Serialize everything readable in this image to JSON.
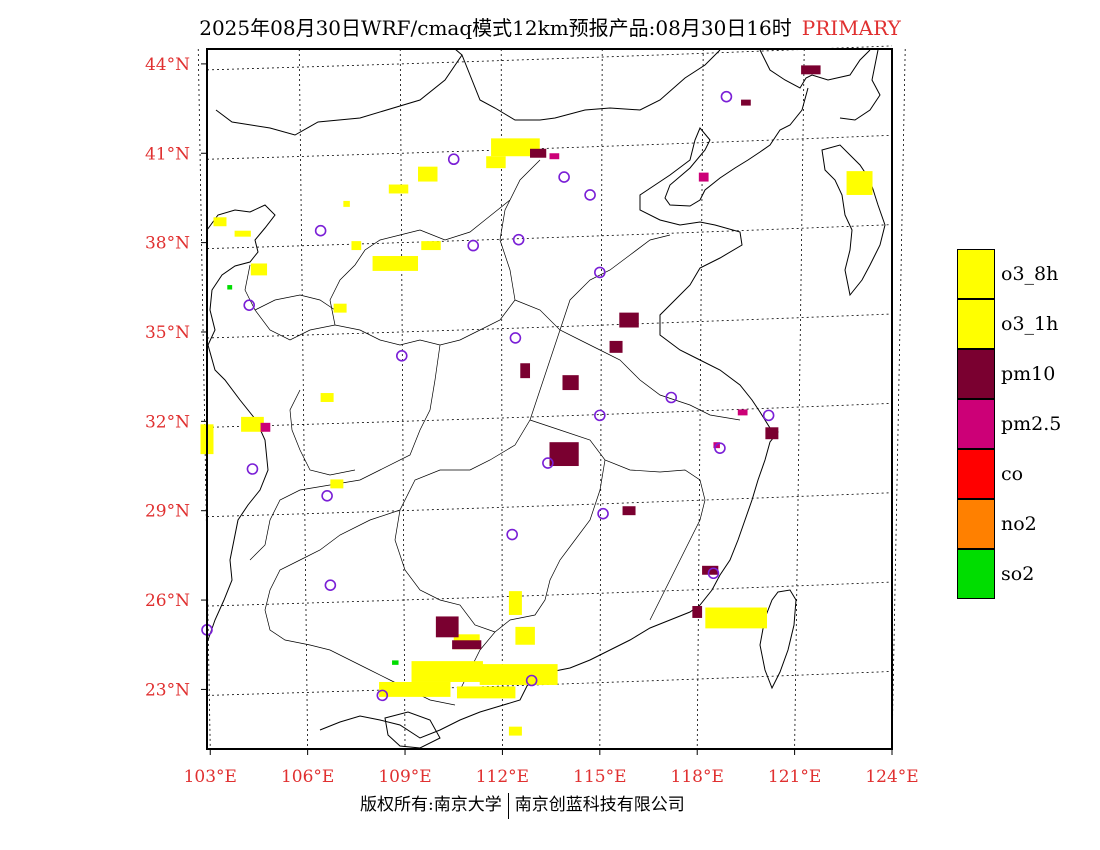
{
  "title": {
    "main": "2025年08月30日WRF/cmaq模式12km预报产品:08月30日16时",
    "tag": "PRIMARY"
  },
  "map": {
    "lat_labels": [
      "44°N",
      "41°N",
      "38°N",
      "35°N",
      "32°N",
      "29°N",
      "26°N",
      "23°N"
    ],
    "lon_labels": [
      "103°E",
      "106°E",
      "109°E",
      "112°E",
      "115°E",
      "118°E",
      "121°E",
      "124°E"
    ],
    "extent": {
      "lon": [
        102.9,
        124.0
      ],
      "lat": [
        21.0,
        44.5
      ]
    },
    "stations": [
      {
        "lon": 110.5,
        "lat": 40.8
      },
      {
        "lon": 113.9,
        "lat": 40.2
      },
      {
        "lon": 114.7,
        "lat": 39.6
      },
      {
        "lon": 118.9,
        "lat": 42.9
      },
      {
        "lon": 106.4,
        "lat": 38.4
      },
      {
        "lon": 111.1,
        "lat": 37.9
      },
      {
        "lon": 112.5,
        "lat": 38.1
      },
      {
        "lon": 115.0,
        "lat": 37.0
      },
      {
        "lon": 104.2,
        "lat": 35.9
      },
      {
        "lon": 112.4,
        "lat": 34.8
      },
      {
        "lon": 108.9,
        "lat": 34.2
      },
      {
        "lon": 117.2,
        "lat": 32.8
      },
      {
        "lon": 120.2,
        "lat": 32.2
      },
      {
        "lon": 115.0,
        "lat": 32.2
      },
      {
        "lon": 118.7,
        "lat": 31.1
      },
      {
        "lon": 113.4,
        "lat": 30.6
      },
      {
        "lon": 104.3,
        "lat": 30.4
      },
      {
        "lon": 106.6,
        "lat": 29.5
      },
      {
        "lon": 115.1,
        "lat": 28.9
      },
      {
        "lon": 112.3,
        "lat": 28.2
      },
      {
        "lon": 106.7,
        "lat": 26.5
      },
      {
        "lon": 118.5,
        "lat": 26.9
      },
      {
        "lon": 102.9,
        "lat": 25.0
      },
      {
        "lon": 108.3,
        "lat": 22.8
      },
      {
        "lon": 112.9,
        "lat": 23.3
      }
    ],
    "pollution_cells": [
      {
        "type": "o3_1h",
        "lon": 112.4,
        "lat": 41.2,
        "w": 1.5,
        "h": 0.6
      },
      {
        "type": "o3_1h",
        "lon": 111.8,
        "lat": 40.7,
        "w": 0.6,
        "h": 0.4
      },
      {
        "type": "o3_1h",
        "lon": 109.7,
        "lat": 40.3,
        "w": 0.6,
        "h": 0.5
      },
      {
        "type": "o3_1h",
        "lon": 108.8,
        "lat": 39.8,
        "w": 0.6,
        "h": 0.3
      },
      {
        "type": "o3_1h",
        "lon": 107.2,
        "lat": 39.3,
        "w": 0.2,
        "h": 0.2
      },
      {
        "type": "o3_1h",
        "lon": 103.3,
        "lat": 38.7,
        "w": 0.4,
        "h": 0.3
      },
      {
        "type": "o3_1h",
        "lon": 104.0,
        "lat": 38.3,
        "w": 0.5,
        "h": 0.2
      },
      {
        "type": "o3_1h",
        "lon": 107.5,
        "lat": 37.9,
        "w": 0.3,
        "h": 0.3
      },
      {
        "type": "o3_1h",
        "lon": 109.8,
        "lat": 37.9,
        "w": 0.6,
        "h": 0.3
      },
      {
        "type": "o3_1h",
        "lon": 108.7,
        "lat": 37.3,
        "w": 1.4,
        "h": 0.5
      },
      {
        "type": "o3_1h",
        "lon": 104.5,
        "lat": 37.1,
        "w": 0.5,
        "h": 0.4
      },
      {
        "type": "o3_1h",
        "lon": 107.0,
        "lat": 35.8,
        "w": 0.4,
        "h": 0.3
      },
      {
        "type": "o3_1h",
        "lon": 102.9,
        "lat": 31.4,
        "w": 0.4,
        "h": 1.0
      },
      {
        "type": "o3_1h",
        "lon": 104.3,
        "lat": 31.9,
        "w": 0.7,
        "h": 0.5
      },
      {
        "type": "o3_1h",
        "lon": 106.9,
        "lat": 29.9,
        "w": 0.4,
        "h": 0.3
      },
      {
        "type": "o3_1h",
        "lon": 106.6,
        "lat": 32.8,
        "w": 0.4,
        "h": 0.3
      },
      {
        "type": "o3_1h",
        "lon": 123.0,
        "lat": 40.0,
        "w": 0.8,
        "h": 0.8
      },
      {
        "type": "o3_1h",
        "lon": 119.2,
        "lat": 25.4,
        "w": 1.9,
        "h": 0.7
      },
      {
        "type": "o3_1h",
        "lon": 112.4,
        "lat": 25.9,
        "w": 0.4,
        "h": 0.8
      },
      {
        "type": "o3_1h",
        "lon": 112.7,
        "lat": 24.8,
        "w": 0.6,
        "h": 0.6
      },
      {
        "type": "o3_1h",
        "lon": 110.9,
        "lat": 24.6,
        "w": 0.8,
        "h": 0.5
      },
      {
        "type": "o3_1h",
        "lon": 112.5,
        "lat": 23.5,
        "w": 2.4,
        "h": 0.7
      },
      {
        "type": "o3_1h",
        "lon": 110.3,
        "lat": 23.6,
        "w": 2.2,
        "h": 0.7
      },
      {
        "type": "o3_1h",
        "lon": 109.3,
        "lat": 23.0,
        "w": 2.2,
        "h": 0.5
      },
      {
        "type": "o3_1h",
        "lon": 111.5,
        "lat": 22.9,
        "w": 1.8,
        "h": 0.4
      },
      {
        "type": "o3_1h",
        "lon": 112.4,
        "lat": 21.6,
        "w": 0.4,
        "h": 0.3
      },
      {
        "type": "pm10",
        "lon": 113.1,
        "lat": 41.0,
        "w": 0.5,
        "h": 0.3
      },
      {
        "type": "pm10",
        "lon": 121.5,
        "lat": 43.8,
        "w": 0.6,
        "h": 0.3
      },
      {
        "type": "pm10",
        "lon": 115.9,
        "lat": 35.4,
        "w": 0.6,
        "h": 0.5
      },
      {
        "type": "pm10",
        "lon": 115.5,
        "lat": 34.5,
        "w": 0.4,
        "h": 0.4
      },
      {
        "type": "pm10",
        "lon": 113.9,
        "lat": 30.9,
        "w": 0.9,
        "h": 0.8
      },
      {
        "type": "pm10",
        "lon": 114.1,
        "lat": 33.3,
        "w": 0.5,
        "h": 0.5
      },
      {
        "type": "pm10",
        "lon": 112.7,
        "lat": 33.7,
        "w": 0.3,
        "h": 0.5
      },
      {
        "type": "pm10",
        "lon": 110.3,
        "lat": 25.1,
        "w": 0.7,
        "h": 0.7
      },
      {
        "type": "pm10",
        "lon": 110.9,
        "lat": 24.5,
        "w": 0.9,
        "h": 0.3
      },
      {
        "type": "pm10",
        "lon": 118.0,
        "lat": 25.6,
        "w": 0.3,
        "h": 0.4
      },
      {
        "type": "pm10",
        "lon": 120.3,
        "lat": 31.6,
        "w": 0.4,
        "h": 0.4
      },
      {
        "type": "pm10",
        "lon": 115.9,
        "lat": 29.0,
        "w": 0.4,
        "h": 0.3
      },
      {
        "type": "pm10",
        "lon": 118.4,
        "lat": 27.0,
        "w": 0.5,
        "h": 0.3
      },
      {
        "type": "pm10",
        "lon": 119.5,
        "lat": 42.7,
        "w": 0.3,
        "h": 0.2
      },
      {
        "type": "pm25",
        "lon": 118.2,
        "lat": 40.2,
        "w": 0.3,
        "h": 0.3
      },
      {
        "type": "pm25",
        "lon": 113.6,
        "lat": 40.9,
        "w": 0.3,
        "h": 0.2
      },
      {
        "type": "pm25",
        "lon": 104.7,
        "lat": 31.8,
        "w": 0.3,
        "h": 0.3
      },
      {
        "type": "pm25",
        "lon": 119.4,
        "lat": 32.3,
        "w": 0.3,
        "h": 0.2
      },
      {
        "type": "pm25",
        "lon": 118.6,
        "lat": 31.2,
        "w": 0.2,
        "h": 0.2
      },
      {
        "type": "so2",
        "lon": 103.6,
        "lat": 36.5,
        "w": 0.15,
        "h": 0.15
      },
      {
        "type": "so2",
        "lon": 108.7,
        "lat": 23.9,
        "w": 0.2,
        "h": 0.15
      }
    ]
  },
  "legend": [
    {
      "label": "o3_8h",
      "color": "#ffff00",
      "key": "o3_8h"
    },
    {
      "label": "o3_1h",
      "color": "#ffff00",
      "key": "o3_1h"
    },
    {
      "label": "pm10",
      "color": "#7a0030",
      "key": "pm10"
    },
    {
      "label": "pm2.5",
      "color": "#cc0077",
      "key": "pm25"
    },
    {
      "label": "co",
      "color": "#ff0000",
      "key": "co"
    },
    {
      "label": "no2",
      "color": "#ff8000",
      "key": "no2"
    },
    {
      "label": "so2",
      "color": "#00dd00",
      "key": "so2"
    }
  ],
  "copyright": {
    "left": "版权所有:南京大学",
    "right": "南京创蓝科技有限公司"
  }
}
